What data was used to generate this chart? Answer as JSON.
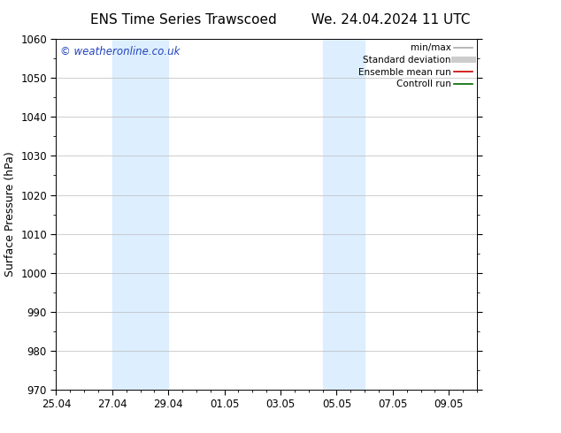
{
  "title_left": "ENS Time Series Trawscoed",
  "title_right": "We. 24.04.2024 11 UTC",
  "ylabel": "Surface Pressure (hPa)",
  "ylim": [
    970,
    1060
  ],
  "yticks": [
    970,
    980,
    990,
    1000,
    1010,
    1020,
    1030,
    1040,
    1050,
    1060
  ],
  "xlim": [
    0,
    15.0
  ],
  "xtick_labels": [
    "25.04",
    "27.04",
    "29.04",
    "01.05",
    "03.05",
    "05.05",
    "07.05",
    "09.05"
  ],
  "xtick_positions": [
    0.0,
    2.0,
    4.0,
    6.0,
    8.0,
    10.0,
    12.0,
    14.0
  ],
  "shaded_bands": [
    {
      "x_start": 2.0,
      "x_end": 4.0,
      "color": "#ddeeff"
    },
    {
      "x_start": 9.5,
      "x_end": 11.0,
      "color": "#ddeeff"
    }
  ],
  "watermark_text": "© weatheronline.co.uk",
  "watermark_color": "#2244bb",
  "legend_items": [
    {
      "label": "min/max",
      "color": "#aaaaaa",
      "lw": 1.2,
      "style": "solid"
    },
    {
      "label": "Standard deviation",
      "color": "#cccccc",
      "lw": 5,
      "style": "solid"
    },
    {
      "label": "Ensemble mean run",
      "color": "#cc0000",
      "lw": 1.2,
      "style": "solid"
    },
    {
      "label": "Controll run",
      "color": "#006600",
      "lw": 1.2,
      "style": "solid"
    }
  ],
  "background_color": "#ffffff",
  "plot_bg_color": "#ffffff",
  "grid_color": "#bbbbbb",
  "tick_color": "#000000",
  "font_color": "#000000",
  "title_fontsize": 11,
  "label_fontsize": 9,
  "tick_fontsize": 8.5,
  "legend_fontsize": 7.5
}
